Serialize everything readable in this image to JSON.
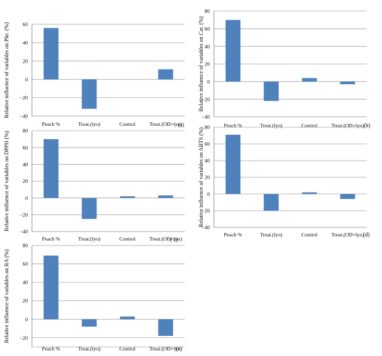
{
  "colors": {
    "bar": "#4f81bd",
    "grid": "#a9a9a9"
  },
  "chart_data": [
    {
      "type": "bar",
      "panel": "(a)",
      "ylabel": "Relative influence of variables on Phe. (%)",
      "ylim": [
        -40,
        60
      ],
      "yticks": [
        -40,
        -20,
        0,
        20,
        40,
        60
      ],
      "ytick_labels": [
        "−40",
        "−20",
        "0",
        "20",
        "40",
        "60"
      ],
      "categories": [
        "Peach %",
        "Treat.(lyo)",
        "Control",
        "Treat.(OD+lyo)"
      ],
      "values": [
        56,
        -32,
        0,
        11
      ],
      "grid": true
    },
    {
      "type": "bar",
      "panel": "(b)",
      "ylabel": "Relative influence of variables on Car. (%)",
      "ylim": [
        -40,
        80
      ],
      "yticks": [
        -40,
        -20,
        0,
        20,
        40,
        60,
        80
      ],
      "ytick_labels": [
        "−40",
        "−20",
        "0",
        "20",
        "40",
        "60",
        "80"
      ],
      "categories": [
        "Peach %",
        "Treat.(lyo)",
        "Control",
        "Treat.(OD+lyo)"
      ],
      "values": [
        70,
        -22,
        4,
        -3
      ],
      "grid": true
    },
    {
      "type": "bar",
      "panel": "( c)",
      "ylabel": "Relative influence of variables on DPPH (%)",
      "ylim": [
        -40,
        80
      ],
      "yticks": [
        -40,
        -20,
        0,
        20,
        40,
        60,
        80
      ],
      "ytick_labels": [
        "−40",
        "−20",
        "0",
        "20",
        "40",
        "60",
        "80"
      ],
      "categories": [
        "Peach %",
        "Treat.(lyo)",
        "Control",
        "Treat.(OD+lyo)"
      ],
      "values": [
        70,
        -25,
        2,
        3
      ],
      "grid": true
    },
    {
      "type": "bar",
      "panel": "(d)",
      "ylabel": "Relative influence of variables on ABTS (%)",
      "ylim": [
        -40,
        80
      ],
      "yticks": [
        -40,
        -20,
        0,
        20,
        40,
        60,
        80
      ],
      "ytick_labels": [
        "−40",
        "−20",
        "0",
        "20",
        "40",
        "60",
        "80"
      ],
      "categories": [
        "Peach %",
        "Treat.(lyo)",
        "Control",
        "Treat.(OD+lyo)"
      ],
      "values": [
        71,
        -20,
        2,
        -6
      ],
      "grid": true
    },
    {
      "type": "bar",
      "panel": "(e)",
      "ylabel": "Relative influence of variables on RA (%)",
      "ylim": [
        -30,
        80
      ],
      "yticks": [
        -20,
        0,
        20,
        40,
        60,
        80
      ],
      "ytick_labels": [
        "−20",
        "0",
        "20",
        "40",
        "60",
        "80"
      ],
      "categories": [
        "Peach %",
        "Treat.(lyo)",
        "Control",
        "Treat.(OD+lyo)"
      ],
      "values": [
        69,
        -8,
        3,
        -18
      ],
      "grid": true
    }
  ]
}
